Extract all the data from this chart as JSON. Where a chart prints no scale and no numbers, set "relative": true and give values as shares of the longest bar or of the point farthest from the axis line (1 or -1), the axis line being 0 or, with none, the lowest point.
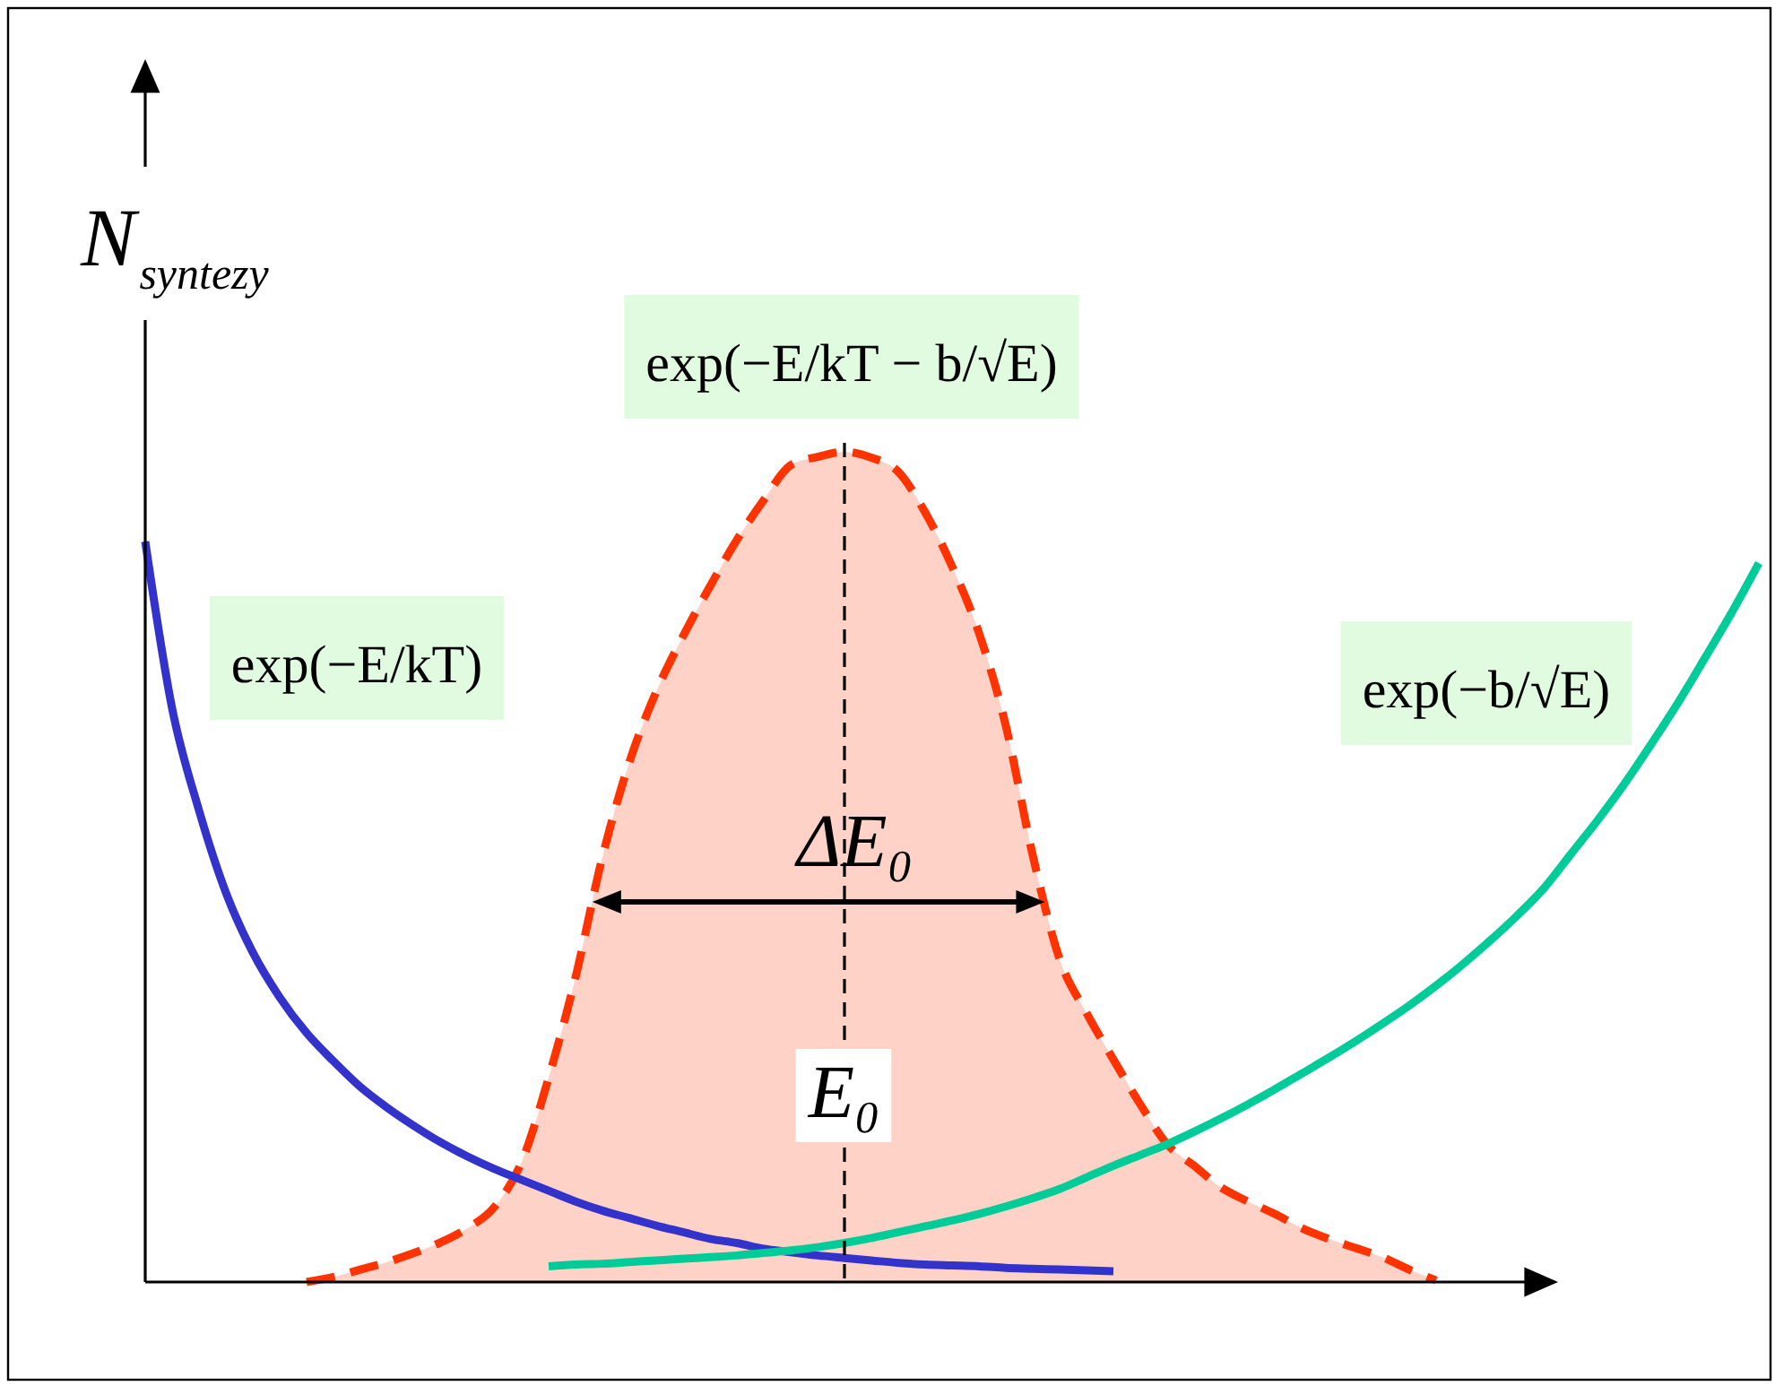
{
  "chart_data": {
    "type": "line",
    "relative": true,
    "ylabel": "N$_{syntezy}$",
    "categories": [
      null,
      null,
      null,
      null,
      null,
      null,
      null,
      null,
      null,
      null,
      null,
      null,
      null,
      null,
      null,
      null,
      null,
      null,
      null,
      null,
      null,
      null,
      null,
      null,
      null,
      null,
      null,
      null,
      null,
      null,
      null,
      null,
      null,
      null,
      null,
      null,
      null,
      null,
      null,
      null,
      null,
      null,
      null,
      null,
      null,
      null,
      null,
      null,
      null,
      null,
      null,
      null,
      null,
      null,
      null,
      null,
      null,
      null,
      null,
      null,
      null
    ],
    "series": [
      {
        "name": "exp(−E/kT)",
        "color": "#3333cc",
        "values": [
          0.892,
          0.691,
          0.568,
          0.469,
          0.397,
          0.343,
          0.3,
          0.266,
          0.235,
          0.21,
          0.188,
          0.168,
          0.151,
          0.136,
          0.123,
          0.11,
          0.097,
          0.086,
          0.077,
          0.068,
          0.06,
          0.052,
          0.047,
          0.04,
          0.036,
          0.032,
          0.029,
          0.026,
          0.023,
          0.021,
          0.02,
          0.019,
          0.017,
          0.016,
          0.015,
          0.014,
          0.013,
          null,
          null,
          null,
          null,
          null,
          null,
          null,
          null,
          null,
          null,
          null,
          null,
          null,
          null,
          null,
          null,
          null,
          null,
          null,
          null,
          null,
          null,
          null,
          null
        ]
      },
      {
        "name": "exp(−E/kT − b/√E)",
        "type": "area",
        "color": "#ff3300",
        "line_style": "dashed",
        "values": [
          null,
          null,
          null,
          null,
          null,
          null,
          0,
          0.006,
          0.015,
          0.024,
          0.035,
          0.048,
          0.065,
          0.091,
          0.145,
          0.246,
          0.367,
          0.512,
          0.626,
          0.711,
          0.778,
          0.838,
          0.894,
          0.942,
          0.984,
          0.994,
          1,
          0.993,
          0.976,
          0.927,
          0.862,
          0.782,
          0.67,
          0.514,
          0.389,
          0.324,
          0.268,
          0.214,
          0.166,
          0.14,
          0.114,
          0.097,
          0.082,
          0.065,
          0.052,
          0.041,
          0.03,
          0.015,
          0.002,
          null,
          null,
          null,
          null,
          null,
          null,
          null,
          null,
          null,
          null,
          null,
          null
        ]
      },
      {
        "name": "exp(−b/√E)",
        "color": "#00cc99",
        "values": [
          null,
          null,
          null,
          null,
          null,
          null,
          null,
          null,
          null,
          null,
          null,
          null,
          null,
          null,
          null,
          0.019,
          0.021,
          0.022,
          0.024,
          0.026,
          0.028,
          0.03,
          0.032,
          0.035,
          0.038,
          0.042,
          0.047,
          0.053,
          0.06,
          0.067,
          0.074,
          0.082,
          0.091,
          0.101,
          0.112,
          0.126,
          0.14,
          0.153,
          0.166,
          0.181,
          0.197,
          0.214,
          0.232,
          0.251,
          0.27,
          0.29,
          0.311,
          0.333,
          0.357,
          0.383,
          0.411,
          0.441,
          0.474,
          0.515,
          0.556,
          0.6,
          0.648,
          0.698,
          0.752,
          0.807,
          0.866
        ]
      }
    ],
    "annotations": [
      "ΔE₀",
      "E₀"
    ]
  }
}
